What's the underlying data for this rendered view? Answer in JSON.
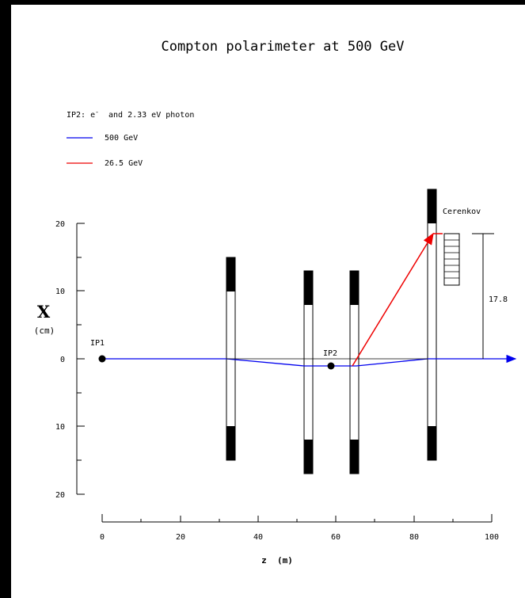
{
  "title": "Compton polarimeter at 500 GeV",
  "legend": {
    "heading_prefix": "IP2: e",
    "heading_sup": "-",
    "heading_suffix": "  and 2.33 eV photon",
    "items": [
      {
        "label": "500 GeV",
        "color": "#0000ee"
      },
      {
        "label": "26.5 GeV",
        "color": "#ee0000"
      }
    ]
  },
  "y_axis": {
    "label": "X",
    "unit": "(cm)",
    "tick_labels": [
      "20",
      "10",
      "0",
      "10",
      "20"
    ]
  },
  "x_axis": {
    "label": "z  (m)",
    "tick_labels": [
      "0",
      "20",
      "40",
      "60",
      "80",
      "100"
    ]
  },
  "labels": {
    "ip1": "IP1",
    "ip2": "IP2",
    "cerenkov": "Cerenkov",
    "dimension": "17.8"
  },
  "colors": {
    "beam_500": "#0000ee",
    "beam_26": "#ee0000",
    "magnet": "#000000"
  }
}
